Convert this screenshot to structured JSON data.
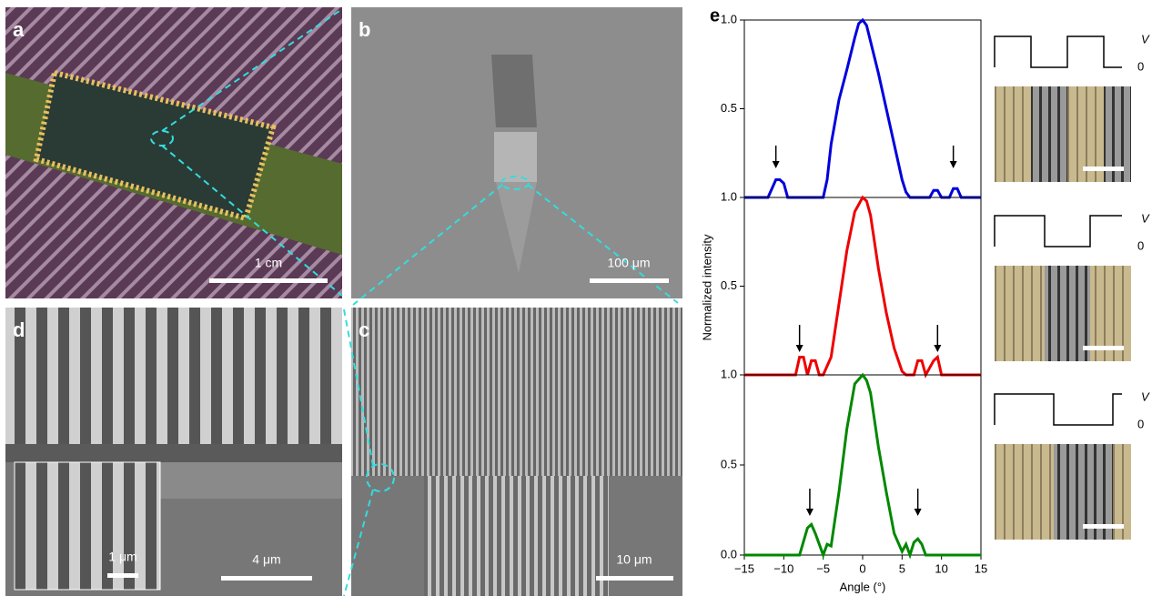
{
  "panels": [
    {
      "label": "a",
      "scale": "1 cm"
    },
    {
      "label": "b",
      "scale": "100 μm"
    },
    {
      "label": "d",
      "scale": "4 μm",
      "inset_scale": "1 μm"
    },
    {
      "label": "c",
      "scale": "10 μm"
    }
  ],
  "panel_e_label": "e",
  "waveforms": [
    {
      "v": "V",
      "zero": "0"
    },
    {
      "v": "V",
      "zero": "0"
    },
    {
      "v": "V",
      "zero": "0"
    }
  ],
  "chart_data": [
    {
      "type": "line",
      "ylabel": "Normalized intensity",
      "xlim": [
        -15,
        15
      ],
      "ylim": [
        0,
        1
      ],
      "yticks": [
        {
          "value": 1,
          "label": "1.0"
        },
        0.5
      ],
      "series": [
        {
          "color": "#0000dd",
          "x": [
            -15,
            -12,
            -11.5,
            -11,
            -10.5,
            -10,
            -9.5,
            -5,
            -4.5,
            -4,
            -3,
            -2,
            -1,
            -0.5,
            0,
            0.5,
            1,
            2,
            3,
            4,
            5,
            5.5,
            6,
            8.5,
            9,
            9.5,
            10,
            11,
            11.5,
            12,
            12.5,
            15
          ],
          "values": [
            0,
            0,
            0.05,
            0.1,
            0.1,
            0.08,
            0,
            0,
            0.1,
            0.3,
            0.55,
            0.72,
            0.9,
            0.98,
            1.0,
            0.97,
            0.88,
            0.7,
            0.5,
            0.3,
            0.1,
            0.03,
            0,
            0,
            0.04,
            0.04,
            0,
            0,
            0.05,
            0.05,
            0,
            0
          ]
        }
      ]
    },
    {
      "type": "line",
      "xlim": [
        -15,
        15
      ],
      "ylim": [
        0,
        1
      ],
      "yticks": [
        {
          "value": 1,
          "label": "1.0"
        },
        0.5
      ],
      "series": [
        {
          "color": "#ee0000",
          "x": [
            -15,
            -8.5,
            -8,
            -7.5,
            -7,
            -6.5,
            -6,
            -5.5,
            -5,
            -4,
            -3,
            -2,
            -1,
            0,
            0.5,
            1,
            2,
            3,
            4,
            5,
            5.5,
            6.5,
            7,
            7.5,
            8,
            9,
            9.5,
            10,
            15
          ],
          "values": [
            0,
            0,
            0.1,
            0.1,
            0,
            0.08,
            0.08,
            0,
            0,
            0.1,
            0.4,
            0.7,
            0.92,
            1.0,
            0.98,
            0.9,
            0.6,
            0.35,
            0.15,
            0.02,
            0,
            0,
            0.08,
            0.08,
            0,
            0.08,
            0.1,
            0,
            0
          ]
        }
      ]
    },
    {
      "type": "line",
      "xlabel": "Angle (°)",
      "xlim": [
        -15,
        15
      ],
      "ylim": [
        0,
        1
      ],
      "xticks": [
        {
          "value": -15,
          "label": "−15"
        },
        {
          "value": -10,
          "label": "−10"
        },
        {
          "value": -5,
          "label": "−5"
        },
        0,
        5,
        10,
        15
      ],
      "yticks": [
        {
          "value": 0,
          "label": "0.0"
        },
        0.5,
        {
          "value": 1,
          "label": "1.0"
        }
      ],
      "series": [
        {
          "color": "#008800",
          "x": [
            -15,
            -8,
            -7,
            -6.5,
            -6,
            -5,
            -4.5,
            -4,
            -3,
            -2,
            -1,
            0,
            0.5,
            1,
            2,
            3,
            4,
            5,
            5.5,
            6,
            6.5,
            7,
            7.5,
            8,
            15
          ],
          "values": [
            0,
            0,
            0.15,
            0.17,
            0.12,
            0,
            0.06,
            0.05,
            0.35,
            0.7,
            0.95,
            1.0,
            0.97,
            0.9,
            0.6,
            0.35,
            0.12,
            0.02,
            0.06,
            0,
            0.07,
            0.09,
            0.06,
            0,
            0
          ]
        }
      ]
    }
  ]
}
